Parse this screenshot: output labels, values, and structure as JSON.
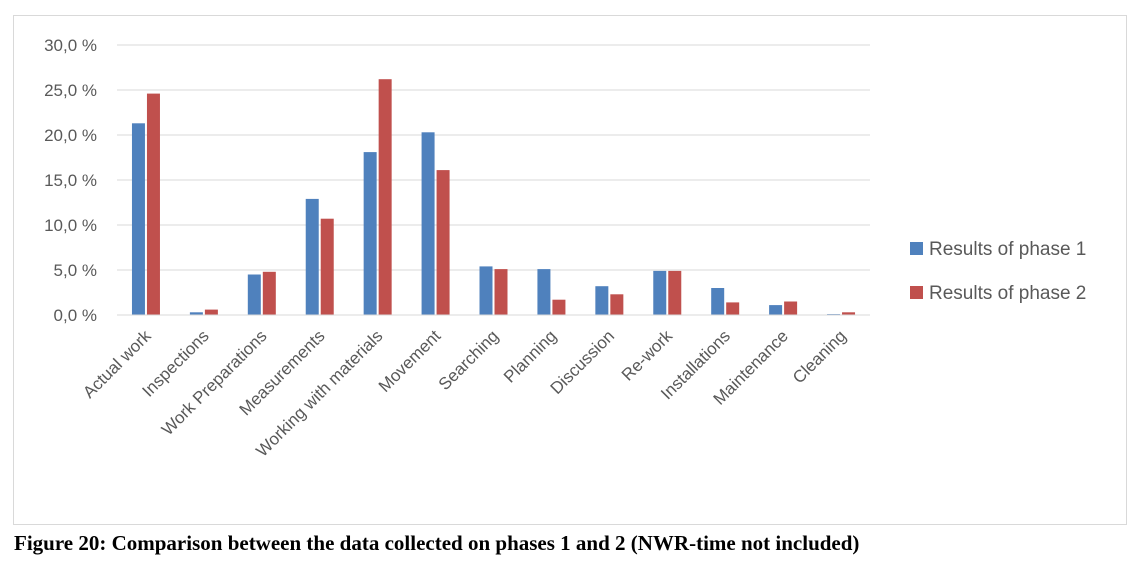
{
  "caption": "Figure 20: Comparison between the data collected on phases 1 and 2 (NWR-time not included)",
  "chart_data": {
    "type": "bar",
    "categories": [
      "Actual work",
      "Inspections",
      "Work Preparations",
      "Measurements",
      "Working with materials",
      "Movement",
      "Searching",
      "Planning",
      "Discussion",
      "Re-work",
      "Installations",
      "Maintenance",
      "Cleaning"
    ],
    "series": [
      {
        "name": "Results of phase 1",
        "color": "#4f81bd",
        "values": [
          21.3,
          0.3,
          4.5,
          12.9,
          18.1,
          20.3,
          5.4,
          5.1,
          3.2,
          4.9,
          3.0,
          1.1,
          0.1
        ]
      },
      {
        "name": "Results of phase 2",
        "color": "#c0504d",
        "values": [
          24.6,
          0.6,
          4.8,
          10.7,
          26.2,
          16.1,
          5.1,
          1.7,
          2.3,
          4.9,
          1.4,
          1.5,
          0.3
        ]
      }
    ],
    "yticks": [
      "0,0 %",
      "5,0 %",
      "10,0 %",
      "15,0 %",
      "20,0 %",
      "25,0 %",
      "30,0 %"
    ],
    "ylim": [
      0,
      30
    ],
    "grid": true,
    "legend_position": "right"
  }
}
